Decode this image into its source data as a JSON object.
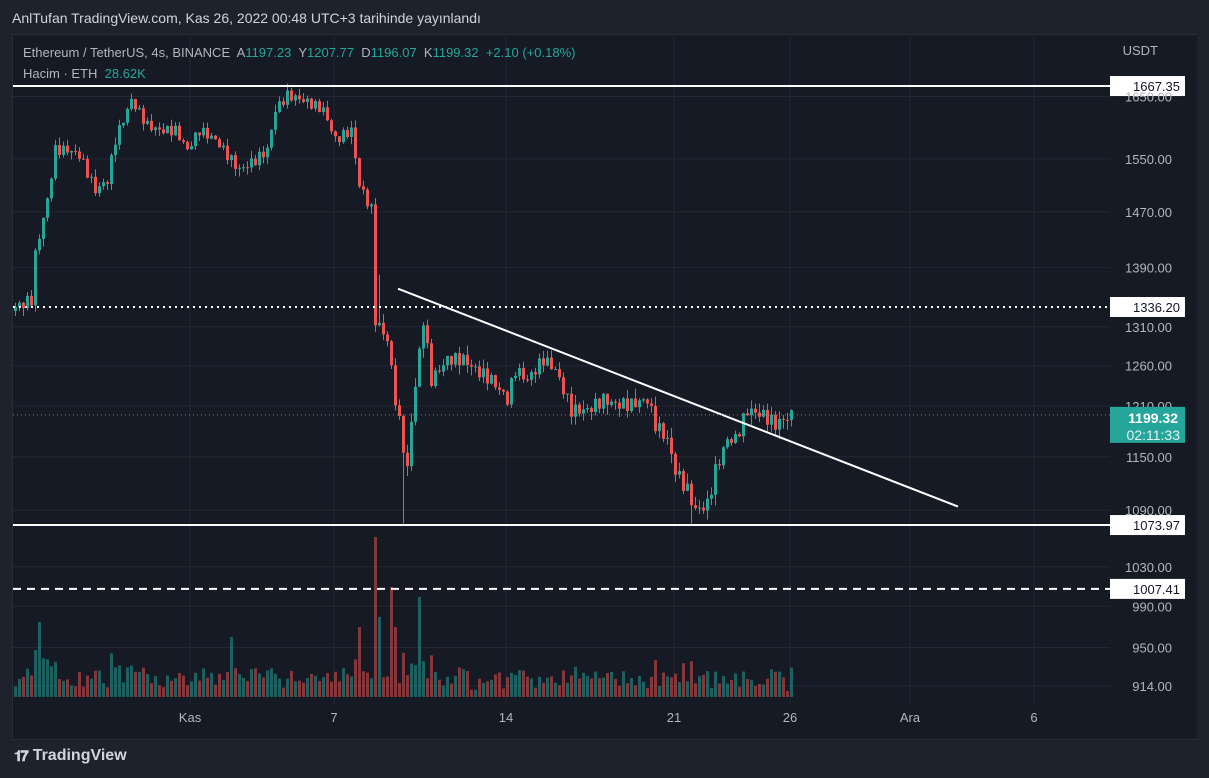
{
  "header": {
    "published": "AnlTufan TradingView.com, Kas 26, 2022 00:48 UTC+3 tarihinde yayınlandı"
  },
  "legend": {
    "symbol": "Ethereum / TetherUS, 4s, BINANCE",
    "o_label": "A",
    "o": "1197.23",
    "h_label": "Y",
    "h": "1207.77",
    "l_label": "D",
    "l": "1196.07",
    "c_label": "K",
    "c": "1199.32",
    "change": "+2.10 (+0.18%)",
    "volume_label": "Hacim · ETH",
    "volume": "28.62K"
  },
  "footer": {
    "brand": "TradingView"
  },
  "chart_data": {
    "type": "candlestick",
    "currency": "USDT",
    "y_scale": "log",
    "ylim": [
      905,
      1690
    ],
    "y_ticks": [
      "1650.00",
      "1550.00",
      "1470.00",
      "1390.00",
      "1310.00",
      "1260.00",
      "1210.00",
      "1150.00",
      "1090.00",
      "1030.00",
      "990.00",
      "950.00",
      "914.00"
    ],
    "x_ticks": [
      {
        "label": "Kas",
        "candle": 44
      },
      {
        "label": "7",
        "candle": 80
      },
      {
        "label": "14",
        "candle": 123
      },
      {
        "label": "21",
        "candle": 165
      },
      {
        "label": "26",
        "candle": 194
      },
      {
        "label": "Ara",
        "candle": 224
      },
      {
        "label": "6",
        "candle": 255
      }
    ],
    "close_keyframes": [
      [
        0,
        1336
      ],
      [
        4,
        1346
      ],
      [
        5,
        1408
      ],
      [
        8,
        1487
      ],
      [
        10,
        1564
      ],
      [
        13,
        1564
      ],
      [
        16,
        1556
      ],
      [
        20,
        1502
      ],
      [
        23,
        1517
      ],
      [
        25,
        1580
      ],
      [
        29,
        1644
      ],
      [
        33,
        1603
      ],
      [
        36,
        1595
      ],
      [
        40,
        1595
      ],
      [
        43,
        1564
      ],
      [
        46,
        1595
      ],
      [
        50,
        1580
      ],
      [
        54,
        1548
      ],
      [
        56,
        1533
      ],
      [
        60,
        1548
      ],
      [
        63,
        1564
      ],
      [
        65,
        1628
      ],
      [
        68,
        1652
      ],
      [
        72,
        1644
      ],
      [
        77,
        1628
      ],
      [
        80,
        1580
      ],
      [
        84,
        1595
      ],
      [
        86,
        1510
      ],
      [
        89,
        1473
      ],
      [
        90,
        1319
      ],
      [
        93,
        1293
      ],
      [
        95,
        1218
      ],
      [
        98,
        1134
      ],
      [
        99,
        1193
      ],
      [
        102,
        1319
      ],
      [
        104,
        1242
      ],
      [
        108,
        1268
      ],
      [
        112,
        1268
      ],
      [
        115,
        1255
      ],
      [
        119,
        1242
      ],
      [
        123,
        1218
      ],
      [
        125,
        1255
      ],
      [
        128,
        1242
      ],
      [
        132,
        1268
      ],
      [
        135,
        1255
      ],
      [
        139,
        1205
      ],
      [
        143,
        1205
      ],
      [
        147,
        1218
      ],
      [
        150,
        1212
      ],
      [
        154,
        1212
      ],
      [
        158,
        1218
      ],
      [
        160,
        1188
      ],
      [
        163,
        1170
      ],
      [
        165,
        1134
      ],
      [
        168,
        1112
      ],
      [
        170,
        1090
      ],
      [
        173,
        1096
      ],
      [
        175,
        1134
      ],
      [
        178,
        1170
      ],
      [
        180,
        1170
      ],
      [
        183,
        1205
      ],
      [
        187,
        1199
      ],
      [
        190,
        1188
      ],
      [
        194,
        1199
      ]
    ],
    "volume_spikes": [
      [
        6,
        75
      ],
      [
        54,
        60
      ],
      [
        86,
        70
      ],
      [
        90,
        160
      ],
      [
        91,
        80
      ],
      [
        94,
        110
      ],
      [
        101,
        100
      ],
      [
        95,
        70
      ]
    ],
    "horizontal_lines": [
      {
        "price": "1667.35",
        "style": "solid"
      },
      {
        "price": "1336.20",
        "style": "dotted"
      },
      {
        "price": "1073.97",
        "style": "solid"
      },
      {
        "price": "1007.41",
        "style": "dashed"
      }
    ],
    "trendline": {
      "from": [
        96,
        1361
      ],
      "to": [
        236,
        1094
      ]
    },
    "last_price": "1199.32",
    "countdown": "02:11:33",
    "colors": {
      "up": "#26a69a",
      "down": "#ef5350",
      "line": "#ffffff"
    }
  }
}
